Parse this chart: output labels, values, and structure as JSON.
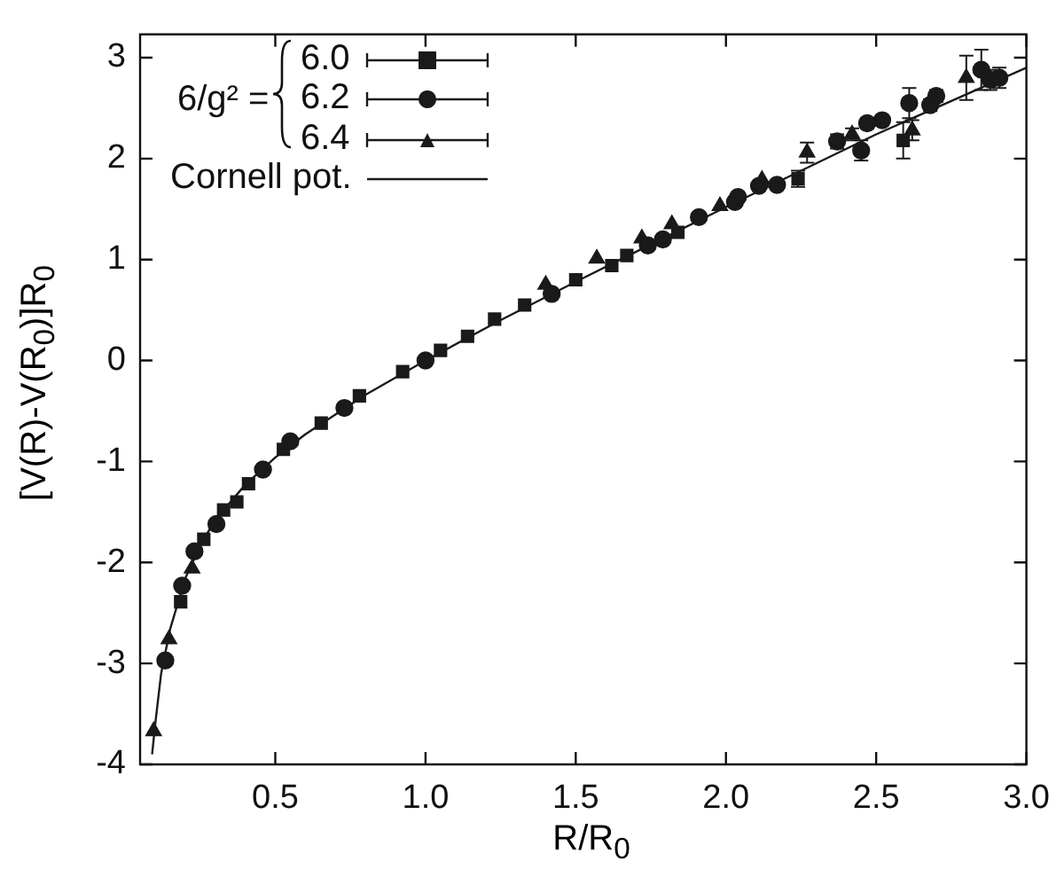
{
  "chart_data": {
    "type": "scatter",
    "xlabel": "R/R$_{0}$",
    "ylabel": "[V(R)-V(R$_{0}$)]R$_{0}$",
    "legend_title": "6/g² =",
    "legend": "top left",
    "grid": false,
    "xlim": [
      0.05,
      3.0
    ],
    "xticks": [
      0.5,
      {
        "value": 1,
        "label": "1.0"
      },
      1.5,
      {
        "value": 2,
        "label": "2.0"
      },
      2.5,
      {
        "value": 3,
        "label": "3.0"
      }
    ],
    "ylim": [
      -4,
      3.23
    ],
    "yticks": [
      -4,
      -3,
      -2,
      -1,
      0,
      1,
      2,
      3
    ],
    "series": [
      {
        "name": "6.0",
        "marker": "square",
        "color": "#1a1a1a",
        "x": [
          0.185,
          0.262,
          0.328,
          0.372,
          0.411,
          0.527,
          0.653,
          0.78,
          0.924,
          1.05,
          1.14,
          1.23,
          1.33,
          1.5,
          1.62,
          1.67,
          1.84,
          2.24,
          2.59
        ],
        "values": [
          -2.39,
          -1.77,
          -1.48,
          -1.4,
          -1.22,
          -0.88,
          -0.62,
          -0.35,
          -0.11,
          0.1,
          0.24,
          0.41,
          0.55,
          0.8,
          0.94,
          1.04,
          1.27,
          1.8,
          2.18
        ],
        "errors": [
          null,
          null,
          null,
          null,
          null,
          null,
          null,
          null,
          null,
          null,
          null,
          null,
          null,
          null,
          null,
          null,
          null,
          0.08,
          0.18
        ]
      },
      {
        "name": "6.2",
        "marker": "circle",
        "color": "#1a1a1a",
        "x": [
          0.134,
          0.19,
          0.231,
          0.304,
          0.459,
          0.55,
          0.73,
          1.0,
          1.42,
          1.74,
          1.79,
          1.91,
          2.03,
          2.04,
          2.11,
          2.17,
          2.37,
          2.45,
          2.47,
          2.52,
          2.61,
          2.68,
          2.7,
          2.85,
          2.88,
          2.91
        ],
        "values": [
          -2.97,
          -2.23,
          -1.89,
          -1.62,
          -1.08,
          -0.8,
          -0.47,
          0.0,
          0.66,
          1.14,
          1.2,
          1.42,
          1.57,
          1.62,
          1.73,
          1.74,
          2.17,
          2.08,
          2.35,
          2.38,
          2.55,
          2.53,
          2.62,
          2.88,
          2.78,
          2.8
        ],
        "errors": [
          null,
          null,
          null,
          null,
          null,
          null,
          null,
          null,
          null,
          null,
          null,
          null,
          null,
          null,
          null,
          null,
          0.07,
          0.1,
          0.05,
          0.05,
          0.15,
          0.06,
          0.06,
          0.2,
          0.1,
          0.1
        ]
      },
      {
        "name": "6.4",
        "marker": "triangle",
        "color": "#1a1a1a",
        "x": [
          0.095,
          0.146,
          0.223,
          1.4,
          1.57,
          1.72,
          1.82,
          1.98,
          2.12,
          2.27,
          2.42,
          2.62,
          2.8
        ],
        "values": [
          -3.67,
          -2.76,
          -2.06,
          0.75,
          1.01,
          1.21,
          1.35,
          1.53,
          1.79,
          2.06,
          2.24,
          2.28,
          2.8
        ],
        "errors": [
          null,
          null,
          null,
          null,
          null,
          null,
          null,
          null,
          null,
          0.1,
          0.06,
          0.1,
          0.22
        ]
      },
      {
        "name": "Cornell pot.",
        "type": "line",
        "marker": "none",
        "line_style": "solid",
        "color": "#1a1a1a",
        "x": [
          0.09,
          0.1,
          0.12,
          0.15,
          0.2,
          0.25,
          0.3,
          0.4,
          0.5,
          0.6,
          0.8,
          1.0,
          1.25,
          1.5,
          1.75,
          2.0,
          2.5,
          3.0
        ],
        "values": [
          -3.9,
          -3.61,
          -3.1,
          -2.66,
          -2.16,
          -1.83,
          -1.58,
          -1.23,
          -0.96,
          -0.73,
          -0.34,
          0.0,
          0.4,
          0.78,
          1.15,
          1.52,
          2.24,
          2.9
        ]
      }
    ]
  }
}
